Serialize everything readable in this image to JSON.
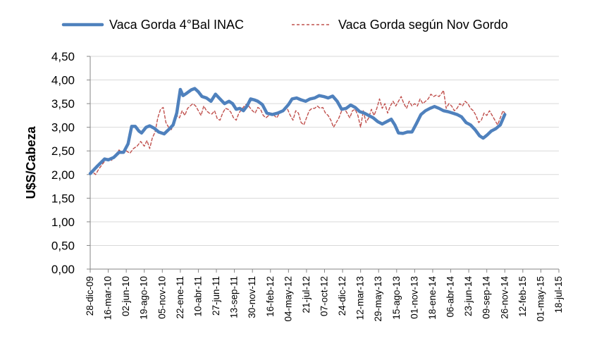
{
  "chart_data": {
    "type": "line",
    "title": "",
    "xlabel": "",
    "ylabel": "U$S/Cabeza",
    "ylim": [
      0,
      4.5
    ],
    "y_ticks": [
      "0,00",
      "0,50",
      "1,00",
      "1,50",
      "2,00",
      "2,50",
      "3,00",
      "3,50",
      "4,00",
      "4,50"
    ],
    "x_ticks": [
      "28-dic-09",
      "16-mar-10",
      "02-jun-10",
      "19-ago-10",
      "05-nov-10",
      "22-ene-11",
      "10-abr-11",
      "27-jun-11",
      "13-sep-11",
      "30-nov-11",
      "16-feb-12",
      "04-may-12",
      "21-jul-12",
      "07-oct-12",
      "24-dic-12",
      "12-mar-13",
      "29-may-13",
      "15-ago-13",
      "01-nov-13",
      "18-ene-14",
      "06-abr-14",
      "23-jun-14",
      "09-sep-14",
      "26-nov-14",
      "12-feb-15",
      "01-may-15",
      "18-jul-15"
    ],
    "grid": "horizontal",
    "legend_position": "top",
    "series": [
      {
        "name": "Vaca Gorda 4°Bal INAC",
        "color": "#4F81BD",
        "style": "solid",
        "points": [
          [
            0,
            2.02
          ],
          [
            0.4,
            2.18
          ],
          [
            0.8,
            2.33
          ],
          [
            1.0,
            2.31
          ],
          [
            1.3,
            2.36
          ],
          [
            1.6,
            2.47
          ],
          [
            1.85,
            2.47
          ],
          [
            2.1,
            2.65
          ],
          [
            2.3,
            3.02
          ],
          [
            2.5,
            3.02
          ],
          [
            2.7,
            2.92
          ],
          [
            2.85,
            2.88
          ],
          [
            3.1,
            3.0
          ],
          [
            3.3,
            3.03
          ],
          [
            3.55,
            2.98
          ],
          [
            3.8,
            2.9
          ],
          [
            4.1,
            2.86
          ],
          [
            4.35,
            2.95
          ],
          [
            4.6,
            3.05
          ],
          [
            4.8,
            3.3
          ],
          [
            5.0,
            3.8
          ],
          [
            5.15,
            3.67
          ],
          [
            5.35,
            3.72
          ],
          [
            5.6,
            3.79
          ],
          [
            5.8,
            3.82
          ],
          [
            6.0,
            3.75
          ],
          [
            6.2,
            3.65
          ],
          [
            6.45,
            3.62
          ],
          [
            6.7,
            3.55
          ],
          [
            6.95,
            3.7
          ],
          [
            7.2,
            3.6
          ],
          [
            7.45,
            3.5
          ],
          [
            7.7,
            3.55
          ],
          [
            7.9,
            3.5
          ],
          [
            8.1,
            3.38
          ],
          [
            8.3,
            3.4
          ],
          [
            8.5,
            3.35
          ],
          [
            8.7,
            3.45
          ],
          [
            8.9,
            3.6
          ],
          [
            9.1,
            3.58
          ],
          [
            9.3,
            3.55
          ],
          [
            9.55,
            3.48
          ],
          [
            9.8,
            3.3
          ],
          [
            10.1,
            3.27
          ],
          [
            10.4,
            3.3
          ],
          [
            10.7,
            3.35
          ],
          [
            11.0,
            3.48
          ],
          [
            11.2,
            3.6
          ],
          [
            11.45,
            3.62
          ],
          [
            11.7,
            3.58
          ],
          [
            11.95,
            3.55
          ],
          [
            12.2,
            3.6
          ],
          [
            12.45,
            3.62
          ],
          [
            12.7,
            3.67
          ],
          [
            12.95,
            3.65
          ],
          [
            13.2,
            3.62
          ],
          [
            13.45,
            3.66
          ],
          [
            13.7,
            3.55
          ],
          [
            13.95,
            3.38
          ],
          [
            14.2,
            3.4
          ],
          [
            14.45,
            3.47
          ],
          [
            14.7,
            3.42
          ],
          [
            14.95,
            3.33
          ],
          [
            15.2,
            3.3
          ],
          [
            15.45,
            3.25
          ],
          [
            15.7,
            3.2
          ],
          [
            15.95,
            3.12
          ],
          [
            16.2,
            3.07
          ],
          [
            16.45,
            3.12
          ],
          [
            16.7,
            3.17
          ],
          [
            16.9,
            3.05
          ],
          [
            17.1,
            2.88
          ],
          [
            17.35,
            2.87
          ],
          [
            17.6,
            2.9
          ],
          [
            17.85,
            2.9
          ],
          [
            18.1,
            3.08
          ],
          [
            18.35,
            3.27
          ],
          [
            18.6,
            3.35
          ],
          [
            18.85,
            3.4
          ],
          [
            19.1,
            3.44
          ],
          [
            19.35,
            3.4
          ],
          [
            19.6,
            3.35
          ],
          [
            19.85,
            3.33
          ],
          [
            20.1,
            3.3
          ],
          [
            20.35,
            3.27
          ],
          [
            20.6,
            3.22
          ],
          [
            20.85,
            3.1
          ],
          [
            21.1,
            3.05
          ],
          [
            21.35,
            2.95
          ],
          [
            21.6,
            2.82
          ],
          [
            21.8,
            2.77
          ],
          [
            22.0,
            2.83
          ],
          [
            22.25,
            2.92
          ],
          [
            22.5,
            2.97
          ],
          [
            22.75,
            3.05
          ],
          [
            23.0,
            3.27
          ]
        ]
      },
      {
        "name": "Vaca Gorda según Nov Gordo",
        "color": "#C0504D",
        "style": "dashed",
        "points": [
          [
            0,
            2.0
          ],
          [
            0.15,
            2.05
          ],
          [
            0.3,
            2.0
          ],
          [
            0.45,
            2.1
          ],
          [
            0.6,
            2.18
          ],
          [
            0.8,
            2.28
          ],
          [
            1.0,
            2.35
          ],
          [
            1.2,
            2.3
          ],
          [
            1.4,
            2.42
          ],
          [
            1.6,
            2.52
          ],
          [
            1.8,
            2.45
          ],
          [
            2.0,
            2.5
          ],
          [
            2.2,
            2.45
          ],
          [
            2.4,
            2.55
          ],
          [
            2.6,
            2.6
          ],
          [
            2.8,
            2.7
          ],
          [
            3.0,
            2.6
          ],
          [
            3.15,
            2.72
          ],
          [
            3.3,
            2.55
          ],
          [
            3.45,
            2.78
          ],
          [
            3.6,
            2.9
          ],
          [
            3.75,
            3.2
          ],
          [
            3.9,
            3.38
          ],
          [
            4.05,
            3.42
          ],
          [
            4.2,
            3.1
          ],
          [
            4.35,
            3.0
          ],
          [
            4.5,
            2.95
          ],
          [
            4.65,
            3.1
          ],
          [
            4.8,
            3.25
          ],
          [
            4.95,
            3.2
          ],
          [
            5.1,
            3.35
          ],
          [
            5.25,
            3.25
          ],
          [
            5.4,
            3.4
          ],
          [
            5.55,
            3.45
          ],
          [
            5.7,
            3.5
          ],
          [
            5.85,
            3.45
          ],
          [
            6.0,
            3.35
          ],
          [
            6.15,
            3.25
          ],
          [
            6.3,
            3.45
          ],
          [
            6.45,
            3.35
          ],
          [
            6.6,
            3.3
          ],
          [
            6.75,
            3.28
          ],
          [
            6.9,
            3.35
          ],
          [
            7.05,
            3.18
          ],
          [
            7.2,
            3.15
          ],
          [
            7.35,
            3.3
          ],
          [
            7.5,
            3.4
          ],
          [
            7.65,
            3.38
          ],
          [
            7.8,
            3.32
          ],
          [
            7.95,
            3.2
          ],
          [
            8.1,
            3.15
          ],
          [
            8.25,
            3.3
          ],
          [
            8.4,
            3.38
          ],
          [
            8.55,
            3.45
          ],
          [
            8.7,
            3.5
          ],
          [
            8.85,
            3.42
          ],
          [
            9.0,
            3.35
          ],
          [
            9.15,
            3.3
          ],
          [
            9.3,
            3.42
          ],
          [
            9.45,
            3.38
          ],
          [
            9.6,
            3.25
          ],
          [
            9.75,
            3.2
          ],
          [
            9.9,
            3.25
          ],
          [
            10.05,
            3.3
          ],
          [
            10.2,
            3.25
          ],
          [
            10.35,
            3.2
          ],
          [
            10.5,
            3.3
          ],
          [
            10.65,
            3.35
          ],
          [
            10.8,
            3.4
          ],
          [
            10.95,
            3.38
          ],
          [
            11.1,
            3.25
          ],
          [
            11.25,
            3.15
          ],
          [
            11.4,
            3.35
          ],
          [
            11.55,
            3.3
          ],
          [
            11.7,
            3.1
          ],
          [
            11.85,
            3.05
          ],
          [
            12.0,
            3.2
          ],
          [
            12.15,
            3.35
          ],
          [
            12.3,
            3.4
          ],
          [
            12.45,
            3.4
          ],
          [
            12.6,
            3.45
          ],
          [
            12.75,
            3.4
          ],
          [
            12.9,
            3.42
          ],
          [
            13.05,
            3.3
          ],
          [
            13.2,
            3.25
          ],
          [
            13.35,
            3.15
          ],
          [
            13.5,
            3.0
          ],
          [
            13.65,
            3.1
          ],
          [
            13.8,
            3.2
          ],
          [
            13.95,
            3.35
          ],
          [
            14.1,
            3.4
          ],
          [
            14.25,
            3.3
          ],
          [
            14.4,
            3.2
          ],
          [
            14.55,
            3.35
          ],
          [
            14.7,
            3.38
          ],
          [
            14.85,
            3.25
          ],
          [
            15.0,
            3.0
          ],
          [
            15.15,
            3.35
          ],
          [
            15.3,
            3.1
          ],
          [
            15.45,
            3.2
          ],
          [
            15.6,
            3.38
          ],
          [
            15.75,
            3.25
          ],
          [
            15.9,
            3.4
          ],
          [
            16.05,
            3.6
          ],
          [
            16.2,
            3.4
          ],
          [
            16.35,
            3.5
          ],
          [
            16.5,
            3.3
          ],
          [
            16.65,
            3.45
          ],
          [
            16.8,
            3.55
          ],
          [
            16.95,
            3.45
          ],
          [
            17.1,
            3.55
          ],
          [
            17.25,
            3.65
          ],
          [
            17.4,
            3.5
          ],
          [
            17.55,
            3.4
          ],
          [
            17.7,
            3.55
          ],
          [
            17.85,
            3.45
          ],
          [
            18.0,
            3.5
          ],
          [
            18.15,
            3.45
          ],
          [
            18.3,
            3.6
          ],
          [
            18.45,
            3.5
          ],
          [
            18.6,
            3.55
          ],
          [
            18.75,
            3.6
          ],
          [
            18.9,
            3.7
          ],
          [
            19.05,
            3.65
          ],
          [
            19.2,
            3.68
          ],
          [
            19.35,
            3.65
          ],
          [
            19.5,
            3.72
          ],
          [
            19.6,
            3.78
          ],
          [
            19.75,
            3.4
          ],
          [
            19.9,
            3.5
          ],
          [
            20.05,
            3.45
          ],
          [
            20.2,
            3.35
          ],
          [
            20.35,
            3.4
          ],
          [
            20.5,
            3.5
          ],
          [
            20.65,
            3.45
          ],
          [
            20.8,
            3.55
          ],
          [
            20.95,
            3.5
          ],
          [
            21.1,
            3.4
          ],
          [
            21.25,
            3.35
          ],
          [
            21.4,
            3.25
          ],
          [
            21.55,
            3.1
          ],
          [
            21.7,
            3.15
          ],
          [
            21.85,
            3.3
          ],
          [
            22.0,
            3.25
          ],
          [
            22.15,
            3.35
          ],
          [
            22.3,
            3.25
          ],
          [
            22.45,
            3.15
          ],
          [
            22.6,
            3.05
          ],
          [
            22.75,
            3.2
          ],
          [
            22.9,
            3.35
          ],
          [
            23.0,
            3.3
          ]
        ]
      }
    ]
  }
}
